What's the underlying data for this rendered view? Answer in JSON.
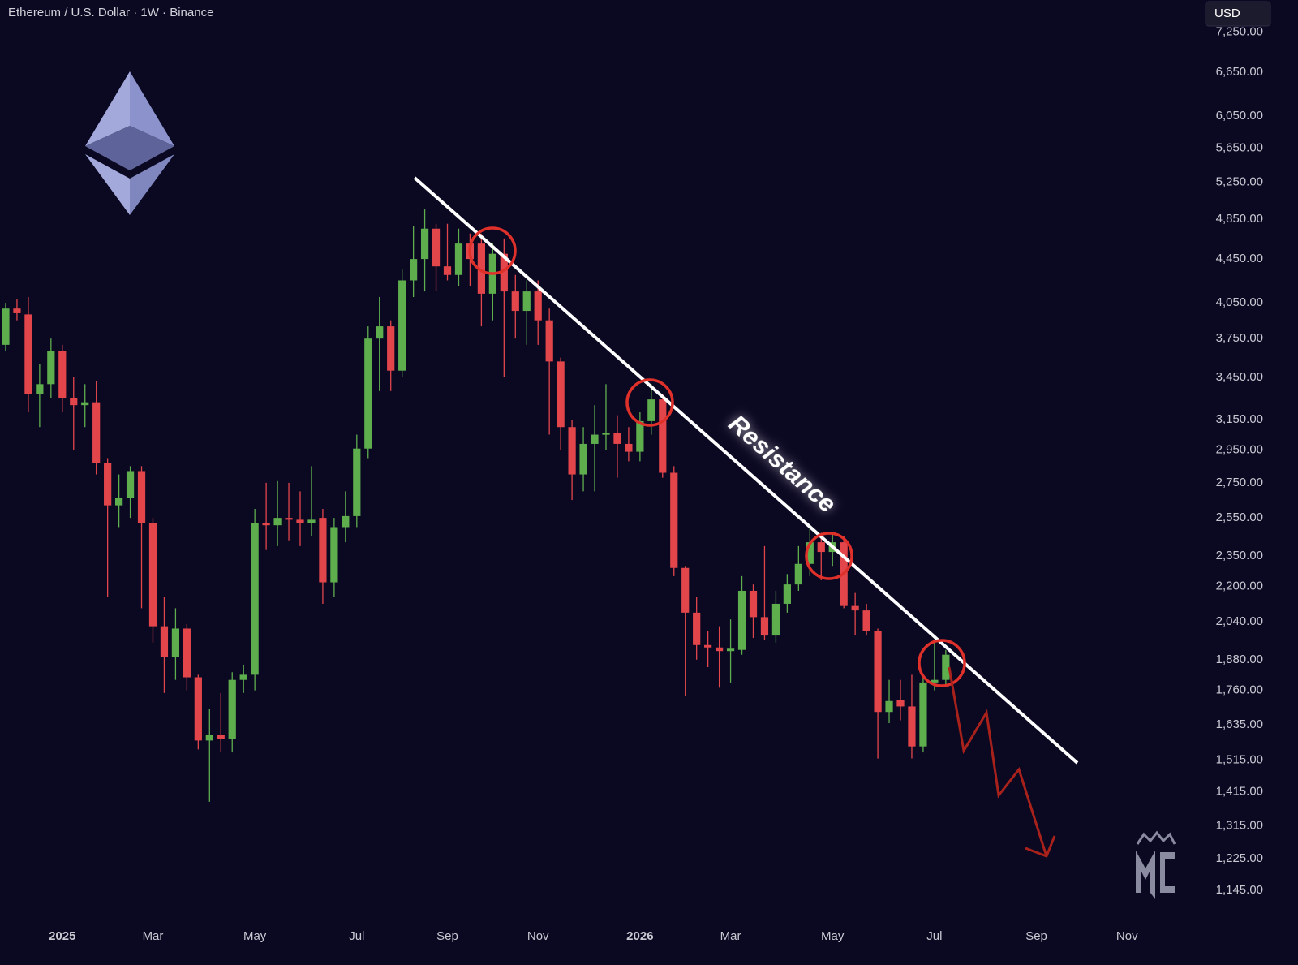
{
  "chart_data": {
    "type": "candlestick",
    "title": "Ethereum / U.S. Dollar · 1W · Binance",
    "currency": "USD",
    "annotation": "Resistance",
    "log_scale": true,
    "up_color": "#5fae4e",
    "down_color": "#e2464b",
    "categories": [
      null,
      null,
      null,
      null,
      null,
      "2025",
      null,
      null,
      null,
      null,
      null,
      null,
      null,
      "Mar",
      null,
      null,
      null,
      null,
      null,
      null,
      null,
      null,
      "May",
      null,
      null,
      null,
      null,
      null,
      null,
      null,
      null,
      "Jul",
      null,
      null,
      null,
      null,
      null,
      null,
      null,
      "Sep",
      null,
      null,
      null,
      null,
      null,
      null,
      null,
      "Nov",
      null,
      null,
      null,
      null,
      null,
      null,
      null,
      null,
      "2026",
      null,
      null,
      null,
      null,
      null,
      null,
      null,
      "Mar",
      null,
      null,
      null,
      null,
      null,
      null,
      null,
      null,
      "May",
      null,
      null,
      null,
      null,
      null,
      null,
      null,
      null,
      "Jul",
      null,
      null,
      null,
      null,
      null,
      null,
      null,
      null,
      "Sep",
      null,
      null,
      null,
      null,
      null,
      null,
      null,
      "Nov",
      null,
      null,
      null,
      null,
      null,
      null
    ],
    "open": [
      3700,
      4000,
      3950,
      3330,
      3400,
      3650,
      3300,
      3250,
      3270,
      2870,
      2620,
      2660,
      2820,
      2520,
      2020,
      1890,
      2010,
      1810,
      1580,
      1600,
      1585,
      1800,
      1820,
      2520,
      2510,
      2550,
      2540,
      2520,
      2550,
      2220,
      2500,
      2560,
      2960,
      3750,
      3850,
      3500,
      4250,
      4450,
      4750,
      4380,
      4300,
      4600,
      4600,
      4130,
      4500,
      4150,
      3980,
      4150,
      3900,
      3570,
      3100,
      2800,
      2990,
      3050,
      3060,
      2990,
      2940,
      3140,
      3290,
      2810,
      2290,
      2080,
      1940,
      1930,
      1915,
      1920,
      2180,
      2060,
      1980,
      2120,
      2210,
      2310,
      2420,
      2370,
      2420,
      2110,
      2090,
      2000,
      1680,
      1725,
      1700,
      1560,
      1790,
      1800,
      null,
      null,
      null,
      null,
      null,
      null,
      null,
      null,
      null,
      null,
      null,
      null,
      null,
      null,
      null,
      null,
      null,
      null,
      null,
      null,
      null,
      null
    ],
    "high": [
      4050,
      4080,
      4100,
      3550,
      3750,
      3700,
      3450,
      3400,
      3420,
      2900,
      2800,
      2850,
      2850,
      2550,
      2150,
      2100,
      2030,
      1820,
      1690,
      1750,
      1830,
      1860,
      2600,
      2750,
      2760,
      2750,
      2700,
      2850,
      2600,
      2550,
      2700,
      3050,
      3850,
      4100,
      3900,
      4350,
      4780,
      4950,
      4800,
      4800,
      4750,
      4700,
      4700,
      4600,
      4650,
      4300,
      4250,
      4250,
      4000,
      3600,
      3150,
      3100,
      3250,
      3400,
      3180,
      3100,
      3200,
      3400,
      3330,
      2850,
      2300,
      2150,
      2000,
      2020,
      2050,
      2250,
      2210,
      2400,
      2180,
      2260,
      2400,
      2500,
      2470,
      2460,
      2450,
      2170,
      2120,
      2010,
      1800,
      1800,
      1820,
      1810,
      1950,
      1920,
      null,
      null,
      null,
      null,
      null,
      null,
      null,
      null,
      null,
      null,
      null,
      null,
      null,
      null,
      null,
      null,
      null,
      null,
      null,
      null,
      null,
      null
    ],
    "low": [
      3650,
      3900,
      3200,
      3100,
      3300,
      3200,
      2950,
      3100,
      2800,
      2150,
      2500,
      2550,
      2100,
      1950,
      1750,
      1800,
      1760,
      1550,
      1385,
      1540,
      1540,
      1750,
      1760,
      2380,
      2400,
      2430,
      2400,
      2450,
      2120,
      2150,
      2420,
      2500,
      2900,
      3350,
      3350,
      3450,
      4100,
      4150,
      4150,
      4250,
      4200,
      4200,
      3850,
      3900,
      3450,
      3750,
      3700,
      3700,
      3050,
      2950,
      2650,
      2700,
      2700,
      2950,
      2780,
      2880,
      2880,
      3050,
      2780,
      2250,
      1740,
      1880,
      1850,
      1770,
      1790,
      1900,
      1970,
      1960,
      1950,
      2080,
      2180,
      2250,
      2230,
      2300,
      2100,
      1980,
      1980,
      1520,
      1640,
      1650,
      1520,
      1540,
      1760,
      1780,
      null,
      null,
      null,
      null,
      null,
      null,
      null,
      null,
      null,
      null,
      null,
      null,
      null,
      null,
      null,
      null,
      null,
      null,
      null,
      null,
      null,
      null
    ],
    "close": [
      4000,
      3960,
      3330,
      3400,
      3650,
      3300,
      3250,
      3270,
      2870,
      2620,
      2660,
      2820,
      2520,
      2020,
      1890,
      2010,
      1810,
      1580,
      1600,
      1585,
      1800,
      1820,
      2520,
      2510,
      2550,
      2540,
      2520,
      2540,
      2220,
      2500,
      2560,
      2960,
      3750,
      3850,
      3500,
      4250,
      4450,
      4750,
      4380,
      4300,
      4600,
      4450,
      4130,
      4500,
      4150,
      3980,
      4150,
      3900,
      3570,
      3100,
      2800,
      2990,
      3050,
      3060,
      2990,
      2940,
      3140,
      3290,
      2810,
      2290,
      2080,
      1940,
      1930,
      1915,
      1925,
      2180,
      2060,
      1980,
      2120,
      2210,
      2310,
      2420,
      2370,
      2420,
      2110,
      2090,
      2000,
      1680,
      1720,
      1700,
      1560,
      1790,
      1800,
      1900,
      null,
      null,
      null,
      null,
      null,
      null,
      null,
      null,
      null,
      null,
      null,
      null,
      null,
      null,
      null,
      null,
      null,
      null,
      null,
      null,
      null,
      null
    ],
    "ylim": [
      1062,
      7767
    ],
    "yticks": [
      {
        "value": 7250,
        "label": "7,250.00"
      },
      {
        "value": 6650,
        "label": "6,650.00"
      },
      {
        "value": 6050,
        "label": "6,050.00"
      },
      {
        "value": 5650,
        "label": "5,650.00"
      },
      {
        "value": 5250,
        "label": "5,250.00"
      },
      {
        "value": 4850,
        "label": "4,850.00"
      },
      {
        "value": 4450,
        "label": "4,450.00"
      },
      {
        "value": 4050,
        "label": "4,050.00"
      },
      {
        "value": 3750,
        "label": "3,750.00"
      },
      {
        "value": 3450,
        "label": "3,450.00"
      },
      {
        "value": 3150,
        "label": "3,150.00"
      },
      {
        "value": 2950,
        "label": "2,950.00"
      },
      {
        "value": 2750,
        "label": "2,750.00"
      },
      {
        "value": 2550,
        "label": "2,550.00"
      },
      {
        "value": 2350,
        "label": "2,350.00"
      },
      {
        "value": 2200,
        "label": "2,200.00"
      },
      {
        "value": 2040,
        "label": "2,040.00"
      },
      {
        "value": 1880,
        "label": "1,880.00"
      },
      {
        "value": 1760,
        "label": "1,760.00"
      },
      {
        "value": 1635,
        "label": "1,635.00"
      },
      {
        "value": 1515,
        "label": "1,515.00"
      },
      {
        "value": 1415,
        "label": "1,415.00"
      },
      {
        "value": 1315,
        "label": "1,315.00"
      },
      {
        "value": 1225,
        "label": "1,225.00"
      },
      {
        "value": 1145,
        "label": "1,145.00"
      }
    ],
    "grid": false
  }
}
